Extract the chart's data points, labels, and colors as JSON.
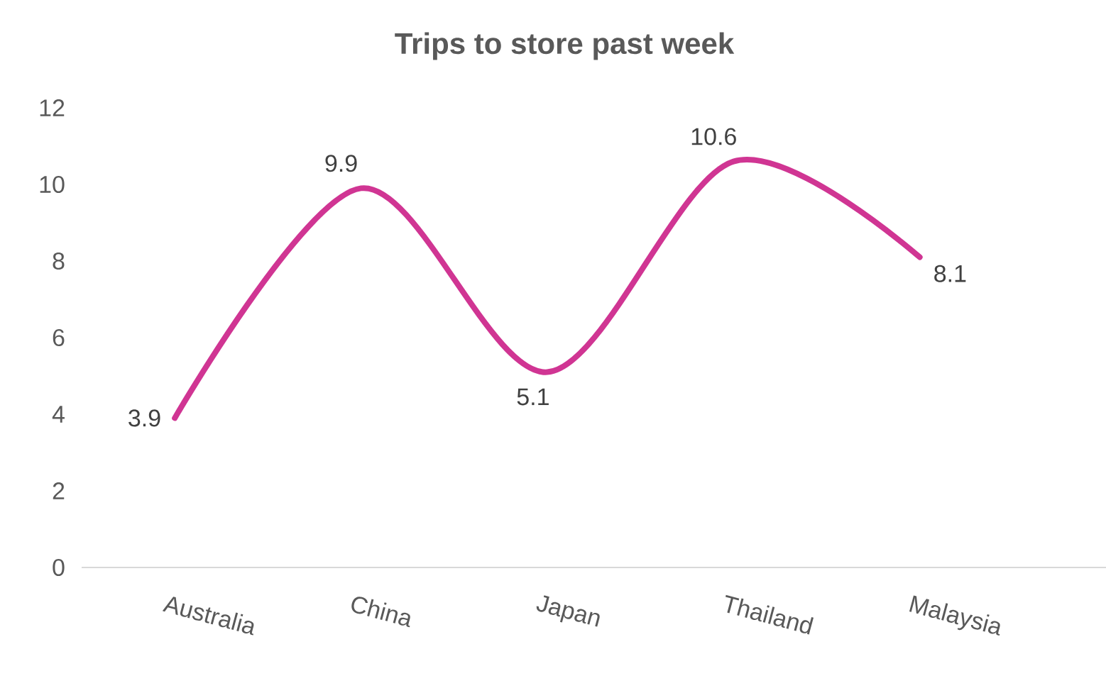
{
  "chart_data": {
    "type": "line",
    "title": "Trips to store past week",
    "categories": [
      "Australia",
      "China",
      "Japan",
      "Thailand",
      "Malaysia"
    ],
    "values": [
      3.9,
      9.9,
      5.1,
      10.6,
      8.1
    ],
    "color": "#d03593",
    "ylim": [
      0,
      12
    ],
    "yticks": [
      0,
      2,
      4,
      6,
      8,
      10,
      12
    ],
    "data_labels": true,
    "grid": false,
    "marker": "none",
    "line_style": "solid"
  }
}
